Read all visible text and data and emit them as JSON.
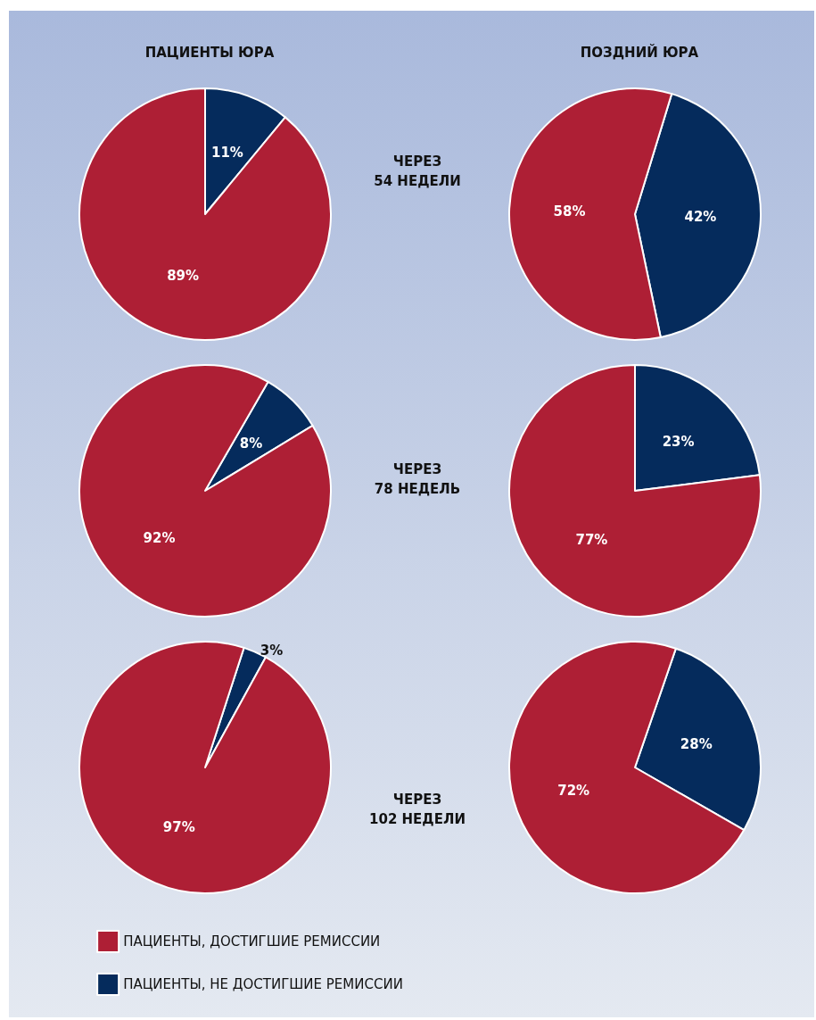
{
  "chart_data": [
    {
      "type": "pie",
      "title": "ПАЦИЕНТЫ ЮРА",
      "annotations": [
        "ЧЕРЕЗ\n54 НЕДЕЛИ"
      ],
      "categories": [
        null,
        null
      ],
      "values": [
        89,
        11
      ],
      "value_labels": [
        "89%",
        "11%"
      ],
      "colors": [
        "#ae1f35",
        "#052b5c"
      ]
    },
    {
      "type": "pie",
      "title": "ПОЗДНИЙ ЮРА",
      "categories": [
        null,
        null
      ],
      "values": [
        58,
        42
      ],
      "value_labels": [
        "58%",
        "42%"
      ],
      "colors": [
        "#ae1f35",
        "#052b5c"
      ]
    },
    {
      "type": "pie",
      "annotations": [
        "ЧЕРЕЗ\n78 НЕДЕЛЬ"
      ],
      "categories": [
        null,
        null
      ],
      "values": [
        92,
        8
      ],
      "value_labels": [
        "92%",
        "8%"
      ],
      "colors": [
        "#ae1f35",
        "#052b5c"
      ]
    },
    {
      "type": "pie",
      "categories": [
        null,
        null
      ],
      "values": [
        77,
        23
      ],
      "value_labels": [
        "77%",
        "23%"
      ],
      "colors": [
        "#ae1f35",
        "#052b5c"
      ]
    },
    {
      "type": "pie",
      "annotations": [
        "ЧЕРЕЗ\n102 НЕДЕЛИ"
      ],
      "categories": [
        "ПАЦИЕНТЫ, ДОСТИГШИЕ РЕМИССИИ",
        "ПАЦИЕНТЫ, НЕ ДОСТИГШИЕ РЕМИССИИ"
      ],
      "values": [
        97,
        3
      ],
      "value_labels": [
        "97%",
        "3%"
      ],
      "colors": [
        "#ae1f35",
        "#052b5c"
      ],
      "legend": "bottom"
    },
    {
      "type": "pie",
      "categories": [
        null,
        null
      ],
      "values": [
        72,
        28
      ],
      "value_labels": [
        "72%",
        "28%"
      ],
      "colors": [
        "#ae1f35",
        "#052b5c"
      ]
    }
  ]
}
